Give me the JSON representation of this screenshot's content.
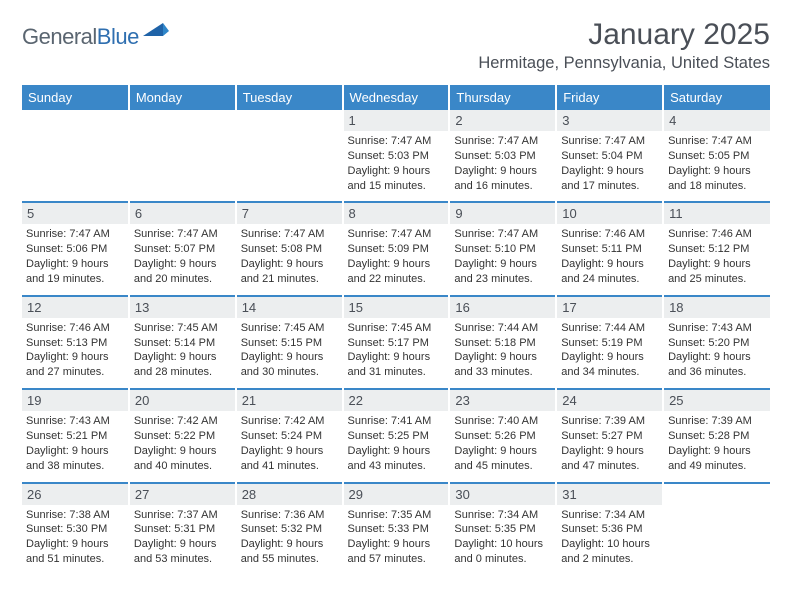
{
  "brand": {
    "name_a": "General",
    "name_b": "Blue"
  },
  "colors": {
    "header_bg": "#3a87c8",
    "header_text": "#ffffff",
    "daynum_bg": "#eceeef",
    "rule": "#3a87c8",
    "text": "#333333",
    "muted": "#4a4f57"
  },
  "title": "January 2025",
  "location": "Hermitage, Pennsylvania, United States",
  "weekdays": [
    "Sunday",
    "Monday",
    "Tuesday",
    "Wednesday",
    "Thursday",
    "Friday",
    "Saturday"
  ],
  "weeks": [
    [
      {
        "n": "",
        "sunrise": "",
        "sunset": "",
        "daylight": ""
      },
      {
        "n": "",
        "sunrise": "",
        "sunset": "",
        "daylight": ""
      },
      {
        "n": "",
        "sunrise": "",
        "sunset": "",
        "daylight": ""
      },
      {
        "n": "1",
        "sunrise": "Sunrise: 7:47 AM",
        "sunset": "Sunset: 5:03 PM",
        "daylight": "Daylight: 9 hours and 15 minutes."
      },
      {
        "n": "2",
        "sunrise": "Sunrise: 7:47 AM",
        "sunset": "Sunset: 5:03 PM",
        "daylight": "Daylight: 9 hours and 16 minutes."
      },
      {
        "n": "3",
        "sunrise": "Sunrise: 7:47 AM",
        "sunset": "Sunset: 5:04 PM",
        "daylight": "Daylight: 9 hours and 17 minutes."
      },
      {
        "n": "4",
        "sunrise": "Sunrise: 7:47 AM",
        "sunset": "Sunset: 5:05 PM",
        "daylight": "Daylight: 9 hours and 18 minutes."
      }
    ],
    [
      {
        "n": "5",
        "sunrise": "Sunrise: 7:47 AM",
        "sunset": "Sunset: 5:06 PM",
        "daylight": "Daylight: 9 hours and 19 minutes."
      },
      {
        "n": "6",
        "sunrise": "Sunrise: 7:47 AM",
        "sunset": "Sunset: 5:07 PM",
        "daylight": "Daylight: 9 hours and 20 minutes."
      },
      {
        "n": "7",
        "sunrise": "Sunrise: 7:47 AM",
        "sunset": "Sunset: 5:08 PM",
        "daylight": "Daylight: 9 hours and 21 minutes."
      },
      {
        "n": "8",
        "sunrise": "Sunrise: 7:47 AM",
        "sunset": "Sunset: 5:09 PM",
        "daylight": "Daylight: 9 hours and 22 minutes."
      },
      {
        "n": "9",
        "sunrise": "Sunrise: 7:47 AM",
        "sunset": "Sunset: 5:10 PM",
        "daylight": "Daylight: 9 hours and 23 minutes."
      },
      {
        "n": "10",
        "sunrise": "Sunrise: 7:46 AM",
        "sunset": "Sunset: 5:11 PM",
        "daylight": "Daylight: 9 hours and 24 minutes."
      },
      {
        "n": "11",
        "sunrise": "Sunrise: 7:46 AM",
        "sunset": "Sunset: 5:12 PM",
        "daylight": "Daylight: 9 hours and 25 minutes."
      }
    ],
    [
      {
        "n": "12",
        "sunrise": "Sunrise: 7:46 AM",
        "sunset": "Sunset: 5:13 PM",
        "daylight": "Daylight: 9 hours and 27 minutes."
      },
      {
        "n": "13",
        "sunrise": "Sunrise: 7:45 AM",
        "sunset": "Sunset: 5:14 PM",
        "daylight": "Daylight: 9 hours and 28 minutes."
      },
      {
        "n": "14",
        "sunrise": "Sunrise: 7:45 AM",
        "sunset": "Sunset: 5:15 PM",
        "daylight": "Daylight: 9 hours and 30 minutes."
      },
      {
        "n": "15",
        "sunrise": "Sunrise: 7:45 AM",
        "sunset": "Sunset: 5:17 PM",
        "daylight": "Daylight: 9 hours and 31 minutes."
      },
      {
        "n": "16",
        "sunrise": "Sunrise: 7:44 AM",
        "sunset": "Sunset: 5:18 PM",
        "daylight": "Daylight: 9 hours and 33 minutes."
      },
      {
        "n": "17",
        "sunrise": "Sunrise: 7:44 AM",
        "sunset": "Sunset: 5:19 PM",
        "daylight": "Daylight: 9 hours and 34 minutes."
      },
      {
        "n": "18",
        "sunrise": "Sunrise: 7:43 AM",
        "sunset": "Sunset: 5:20 PM",
        "daylight": "Daylight: 9 hours and 36 minutes."
      }
    ],
    [
      {
        "n": "19",
        "sunrise": "Sunrise: 7:43 AM",
        "sunset": "Sunset: 5:21 PM",
        "daylight": "Daylight: 9 hours and 38 minutes."
      },
      {
        "n": "20",
        "sunrise": "Sunrise: 7:42 AM",
        "sunset": "Sunset: 5:22 PM",
        "daylight": "Daylight: 9 hours and 40 minutes."
      },
      {
        "n": "21",
        "sunrise": "Sunrise: 7:42 AM",
        "sunset": "Sunset: 5:24 PM",
        "daylight": "Daylight: 9 hours and 41 minutes."
      },
      {
        "n": "22",
        "sunrise": "Sunrise: 7:41 AM",
        "sunset": "Sunset: 5:25 PM",
        "daylight": "Daylight: 9 hours and 43 minutes."
      },
      {
        "n": "23",
        "sunrise": "Sunrise: 7:40 AM",
        "sunset": "Sunset: 5:26 PM",
        "daylight": "Daylight: 9 hours and 45 minutes."
      },
      {
        "n": "24",
        "sunrise": "Sunrise: 7:39 AM",
        "sunset": "Sunset: 5:27 PM",
        "daylight": "Daylight: 9 hours and 47 minutes."
      },
      {
        "n": "25",
        "sunrise": "Sunrise: 7:39 AM",
        "sunset": "Sunset: 5:28 PM",
        "daylight": "Daylight: 9 hours and 49 minutes."
      }
    ],
    [
      {
        "n": "26",
        "sunrise": "Sunrise: 7:38 AM",
        "sunset": "Sunset: 5:30 PM",
        "daylight": "Daylight: 9 hours and 51 minutes."
      },
      {
        "n": "27",
        "sunrise": "Sunrise: 7:37 AM",
        "sunset": "Sunset: 5:31 PM",
        "daylight": "Daylight: 9 hours and 53 minutes."
      },
      {
        "n": "28",
        "sunrise": "Sunrise: 7:36 AM",
        "sunset": "Sunset: 5:32 PM",
        "daylight": "Daylight: 9 hours and 55 minutes."
      },
      {
        "n": "29",
        "sunrise": "Sunrise: 7:35 AM",
        "sunset": "Sunset: 5:33 PM",
        "daylight": "Daylight: 9 hours and 57 minutes."
      },
      {
        "n": "30",
        "sunrise": "Sunrise: 7:34 AM",
        "sunset": "Sunset: 5:35 PM",
        "daylight": "Daylight: 10 hours and 0 minutes."
      },
      {
        "n": "31",
        "sunrise": "Sunrise: 7:34 AM",
        "sunset": "Sunset: 5:36 PM",
        "daylight": "Daylight: 10 hours and 2 minutes."
      },
      {
        "n": "",
        "sunrise": "",
        "sunset": "",
        "daylight": ""
      }
    ]
  ]
}
